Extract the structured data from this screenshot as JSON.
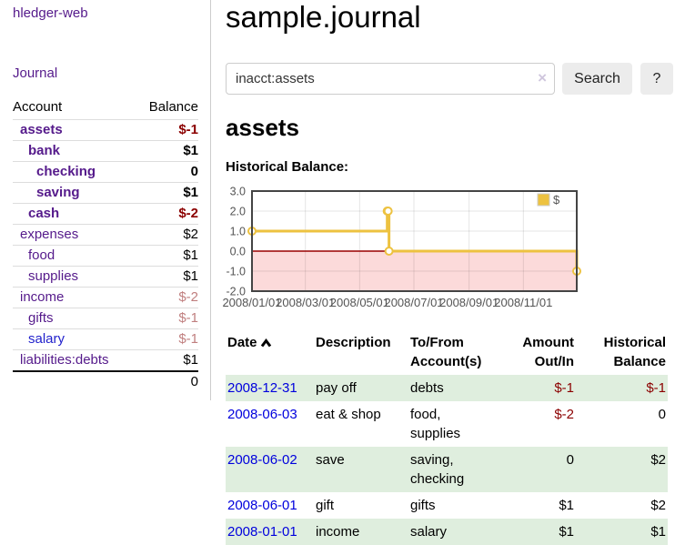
{
  "colors": {
    "link_purple": "#551a8b",
    "link_blue": "#2222cc",
    "date_link_blue": "#0000dd",
    "negative_dark": "#8b0000",
    "negative_light": "#c07f7f",
    "row_stripe_green": "#dfeede"
  },
  "sidebar": {
    "app_title": "hledger-web",
    "journal_link": "Journal",
    "table": {
      "headers": [
        "Account",
        "Balance"
      ],
      "rows": [
        {
          "name": "assets",
          "balance": "$-1"
        },
        {
          "name": "bank",
          "balance": "$1"
        },
        {
          "name": "checking",
          "balance": "0"
        },
        {
          "name": "saving",
          "balance": "$1"
        },
        {
          "name": "cash",
          "balance": "$-2"
        },
        {
          "name": "expenses",
          "balance": "$2"
        },
        {
          "name": "food",
          "balance": "$1"
        },
        {
          "name": "supplies",
          "balance": "$1"
        },
        {
          "name": "income",
          "balance": "$-2"
        },
        {
          "name": "gifts",
          "balance": "$-1"
        },
        {
          "name": "salary",
          "balance": "$-1"
        },
        {
          "name": "liabilities:debts",
          "balance": "$1"
        }
      ],
      "total": "0"
    }
  },
  "main": {
    "title": "sample.journal",
    "account_heading": "assets",
    "chart_heading": "Historical Balance:"
  },
  "search": {
    "value": "inacct:assets",
    "clear_icon": "×",
    "button_label": "Search",
    "help_label": "?"
  },
  "chart_data": {
    "type": "line",
    "style": "steps",
    "title": "Historical Balance:",
    "series": [
      {
        "name": "$",
        "color": "#edc240",
        "points": [
          {
            "date": "2008-01-01",
            "value": 1
          },
          {
            "date": "2008-06-01",
            "value": 2
          },
          {
            "date": "2008-06-02",
            "value": 2
          },
          {
            "date": "2008-06-03",
            "value": 0
          },
          {
            "date": "2008-12-31",
            "value": -1
          }
        ]
      }
    ],
    "x_range": [
      "2008-01-01",
      "2008-12-31"
    ],
    "x_ticks": [
      "2008/01/01",
      "2008/03/01",
      "2008/05/01",
      "2008/07/01",
      "2008/09/01",
      "2008/11/01"
    ],
    "y_ticks": [
      3.0,
      2.0,
      1.0,
      0.0,
      -1.0,
      -2.0
    ],
    "ylim": [
      -2,
      3
    ],
    "grid": true,
    "legend": {
      "label": "$",
      "position": "top-right"
    },
    "negative_region_color": "#fcdada",
    "zero_line_color": "#990000",
    "border_color": "#444444",
    "axis_text_color": "#545454"
  },
  "register": {
    "headers": [
      "Date",
      "Description",
      "To/From Account(s)",
      "Amount Out/In",
      "Historical Balance"
    ],
    "sort_icon": "chevron-up",
    "rows": [
      {
        "date": "2008-12-31",
        "description": "pay off",
        "accounts": "debts",
        "amount": "$-1",
        "balance": "$-1"
      },
      {
        "date": "2008-06-03",
        "description": "eat & shop",
        "accounts": "food, supplies",
        "amount": "$-2",
        "balance": "0"
      },
      {
        "date": "2008-06-02",
        "description": "save",
        "accounts": "saving, checking",
        "amount": "0",
        "balance": "$2"
      },
      {
        "date": "2008-06-01",
        "description": "gift",
        "accounts": "gifts",
        "amount": "$1",
        "balance": "$2"
      },
      {
        "date": "2008-01-01",
        "description": "income",
        "accounts": "salary",
        "amount": "$1",
        "balance": "$1"
      }
    ]
  }
}
